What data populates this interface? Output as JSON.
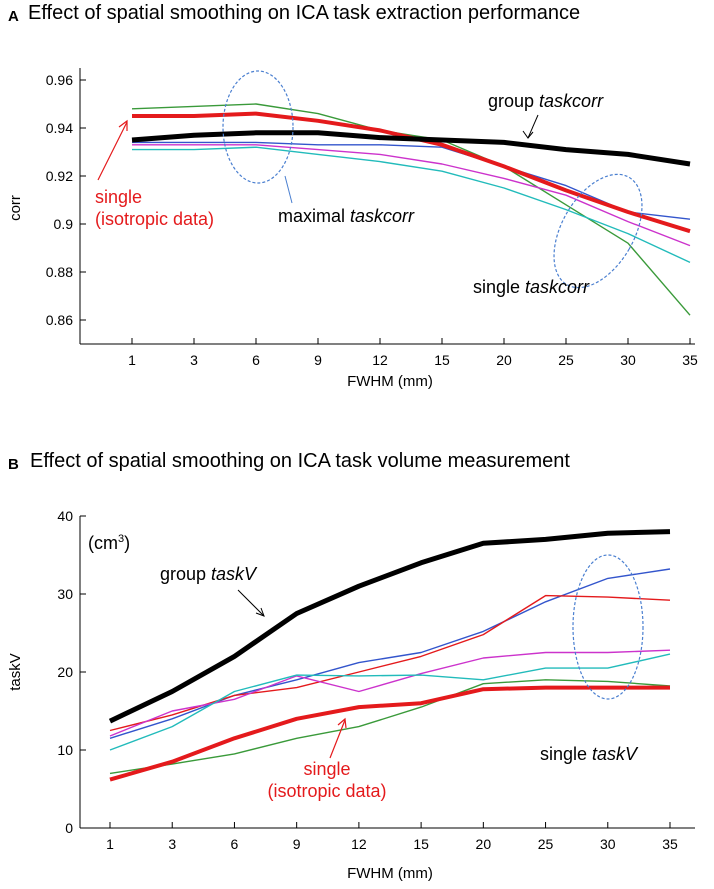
{
  "chart_data": [
    {
      "type": "line",
      "panel": "A",
      "title": "Effect of spatial smoothing on ICA task extraction performance",
      "xlabel": "FWHM (mm)",
      "ylabel": "corr",
      "categories": [
        "1",
        "3",
        "6",
        "9",
        "12",
        "15",
        "20",
        "25",
        "30",
        "35"
      ],
      "ylim": [
        0.85,
        0.965
      ],
      "yticks": [
        "0.86",
        "0.88",
        "0.9",
        "0.92",
        "0.94",
        "0.96"
      ],
      "ytick_values": [
        0.86,
        0.88,
        0.9,
        0.92,
        0.94,
        0.96
      ],
      "series": [
        {
          "name": "group taskcorr",
          "color": "#000000",
          "width": 5,
          "values": [
            0.935,
            0.937,
            0.938,
            0.938,
            0.936,
            0.935,
            0.934,
            0.931,
            0.929,
            0.925
          ]
        },
        {
          "name": "single (isotropic data)",
          "color": "#e41a1c",
          "width": 4,
          "values": [
            0.945,
            0.945,
            0.946,
            0.943,
            0.939,
            0.933,
            0.924,
            0.914,
            0.905,
            0.897
          ]
        },
        {
          "name": "single green",
          "color": "#3a9a3a",
          "width": 1.4,
          "values": [
            0.948,
            0.949,
            0.95,
            0.946,
            0.939,
            0.935,
            0.924,
            0.908,
            0.892,
            0.862
          ]
        },
        {
          "name": "single blue",
          "color": "#3355cc",
          "width": 1.4,
          "values": [
            0.934,
            0.934,
            0.934,
            0.933,
            0.933,
            0.932,
            0.924,
            0.916,
            0.905,
            0.902
          ]
        },
        {
          "name": "single magenta",
          "color": "#cc33cc",
          "width": 1.4,
          "values": [
            0.933,
            0.933,
            0.933,
            0.931,
            0.929,
            0.925,
            0.919,
            0.912,
            0.901,
            0.891
          ]
        },
        {
          "name": "single cyan",
          "color": "#22bbbb",
          "width": 1.4,
          "values": [
            0.931,
            0.931,
            0.932,
            0.929,
            0.926,
            0.922,
            0.915,
            0.906,
            0.896,
            0.884
          ]
        }
      ],
      "annotations": {
        "group": {
          "prefix": "group ",
          "italic": "taskcorr"
        },
        "maximal": {
          "prefix": "maximal ",
          "italic": "taskcorr"
        },
        "single": {
          "prefix": "single  ",
          "italic": "taskcorr"
        },
        "red_line1": "single",
        "red_line2": "(isotropic data)"
      }
    },
    {
      "type": "line",
      "panel": "B",
      "title": "Effect of spatial smoothing on ICA task volume measurement",
      "xlabel": "FWHM (mm)",
      "ylabel": "taskV",
      "unit": "(cm",
      "unit_sup": "3",
      "unit_close": ")",
      "categories": [
        "1",
        "3",
        "6",
        "9",
        "12",
        "15",
        "20",
        "25",
        "30",
        "35"
      ],
      "ylim": [
        0,
        40
      ],
      "yticks": [
        "0",
        "10",
        "20",
        "30",
        "40"
      ],
      "ytick_values": [
        0,
        10,
        20,
        30,
        40
      ],
      "series": [
        {
          "name": "group taskV",
          "color": "#000000",
          "width": 5,
          "values": [
            13.7,
            17.5,
            22.0,
            27.5,
            31.0,
            34.0,
            36.5,
            37.0,
            37.8,
            38.0
          ]
        },
        {
          "name": "single (isotropic data)",
          "color": "#e41a1c",
          "width": 4,
          "values": [
            6.2,
            8.5,
            11.5,
            14.0,
            15.5,
            16.0,
            17.8,
            18.0,
            18.0,
            18.0
          ]
        },
        {
          "name": "single blue",
          "color": "#3355cc",
          "width": 1.4,
          "values": [
            11.5,
            14.0,
            17.0,
            19.0,
            21.2,
            22.5,
            25.2,
            29.0,
            32.0,
            33.2
          ]
        },
        {
          "name": "single red thin",
          "color": "#e41a1c",
          "width": 1.4,
          "values": [
            12.5,
            14.5,
            17.0,
            18.0,
            20.0,
            22.0,
            24.8,
            29.8,
            29.6,
            29.2
          ]
        },
        {
          "name": "single magenta",
          "color": "#cc33cc",
          "width": 1.4,
          "values": [
            11.8,
            15.0,
            16.5,
            19.5,
            17.5,
            19.8,
            21.8,
            22.5,
            22.5,
            22.8
          ]
        },
        {
          "name": "single cyan",
          "color": "#22bbbb",
          "width": 1.4,
          "values": [
            10.0,
            13.0,
            17.5,
            19.6,
            19.5,
            19.6,
            19.0,
            20.5,
            20.5,
            22.3
          ]
        },
        {
          "name": "single green",
          "color": "#3a9a3a",
          "width": 1.4,
          "values": [
            7.0,
            8.2,
            9.5,
            11.5,
            13.0,
            15.5,
            18.5,
            19.0,
            18.8,
            18.2
          ]
        }
      ],
      "annotations": {
        "group": {
          "prefix": "group ",
          "italic": "taskV"
        },
        "single": {
          "prefix": "single  ",
          "italic": "taskV"
        },
        "red_line1": "single",
        "red_line2": "(isotropic data)"
      }
    }
  ],
  "panels": {
    "a_letter": "A",
    "b_letter": "B"
  }
}
